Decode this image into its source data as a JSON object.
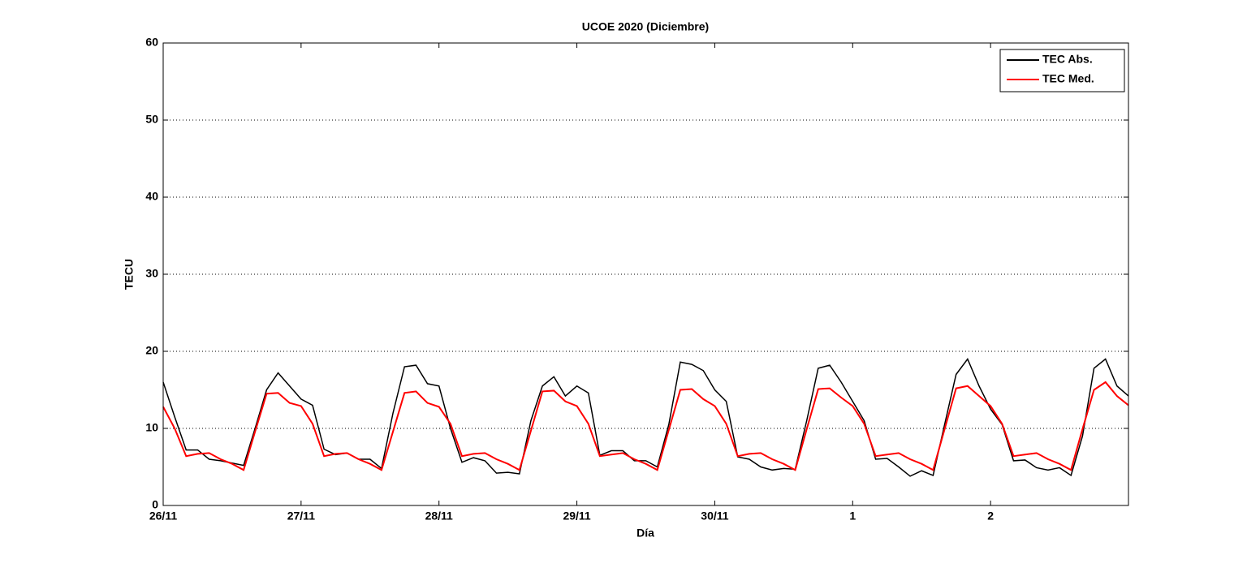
{
  "chart_data": {
    "type": "line",
    "title": "UCOE 2020 (Diciembre)",
    "xlabel": "Día",
    "ylabel": "TECU",
    "x": [
      0,
      2,
      4,
      6,
      8,
      10,
      12,
      14,
      16,
      18,
      20,
      22,
      24,
      26,
      28,
      30,
      32,
      34,
      36,
      38,
      40,
      42,
      44,
      46,
      48,
      50,
      52,
      54,
      56,
      58,
      60,
      62,
      64,
      66,
      68,
      70,
      72,
      74,
      76,
      78,
      80,
      82,
      84,
      86,
      88,
      90,
      92,
      94,
      96,
      98,
      100,
      102,
      104,
      106,
      108,
      110,
      112,
      114,
      116,
      118,
      120,
      122,
      124,
      126,
      128,
      130,
      132,
      134,
      136,
      138,
      140,
      142,
      144,
      146,
      148,
      150,
      152,
      154,
      156,
      158,
      160,
      162,
      164,
      166,
      168
    ],
    "series": [
      {
        "name": "TEC Abs.",
        "color": "#000000",
        "values": [
          16,
          11.5,
          7.2,
          7.2,
          6.0,
          5.8,
          5.5,
          5.2,
          10,
          15,
          17.2,
          15.5,
          13.8,
          13,
          7.3,
          6.6,
          6.8,
          6.0,
          6.0,
          4.8,
          12,
          18,
          18.2,
          15.8,
          15.5,
          10,
          5.6,
          6.2,
          5.8,
          4.2,
          4.3,
          4.1,
          11,
          15.5,
          16.7,
          14.2,
          15.5,
          14.6,
          6.5,
          7.1,
          7.1,
          5.8,
          5.8,
          5.0,
          10.5,
          18.6,
          18.3,
          17.5,
          15,
          13.5,
          6.3,
          6.0,
          5.0,
          4.6,
          4.8,
          4.7,
          11,
          17.8,
          18.2,
          16,
          13.5,
          11,
          6.0,
          6.1,
          5.0,
          3.8,
          4.5,
          3.9,
          10.5,
          17,
          19,
          15.5,
          12.5,
          10.5,
          5.8,
          5.9,
          4.9,
          4.6,
          4.9,
          3.9,
          9,
          17.8,
          19,
          15.5,
          14.2
        ]
      },
      {
        "name": "TEC Med.",
        "color": "#ff0000",
        "values": [
          12.8,
          10,
          6.4,
          6.7,
          6.8,
          6.0,
          5.4,
          4.6,
          9.6,
          14.5,
          14.6,
          13.3,
          12.9,
          10.6,
          6.4,
          6.7,
          6.8,
          6.0,
          5.4,
          4.6,
          9.6,
          14.6,
          14.8,
          13.3,
          12.8,
          10.6,
          6.4,
          6.7,
          6.8,
          6.0,
          5.4,
          4.6,
          9.7,
          14.8,
          14.9,
          13.5,
          12.9,
          10.6,
          6.4,
          6.6,
          6.8,
          6.0,
          5.4,
          4.6,
          9.8,
          15.0,
          15.1,
          13.8,
          12.9,
          10.6,
          6.4,
          6.7,
          6.8,
          6.0,
          5.4,
          4.6,
          9.9,
          15.1,
          15.2,
          14.0,
          12.9,
          10.6,
          6.4,
          6.6,
          6.8,
          6.0,
          5.4,
          4.6,
          9.9,
          15.2,
          15.5,
          14.2,
          12.9,
          10.6,
          6.4,
          6.6,
          6.8,
          6.0,
          5.4,
          4.6,
          9.9,
          15.0,
          16,
          14.2,
          13
        ]
      }
    ],
    "xlim": [
      0,
      168
    ],
    "xticks": [
      {
        "value": 0,
        "label": "26/11"
      },
      {
        "value": 24,
        "label": "27/11"
      },
      {
        "value": 48,
        "label": "28/11"
      },
      {
        "value": 72,
        "label": "29/11"
      },
      {
        "value": 96,
        "label": "30/11"
      },
      {
        "value": 120,
        "label": "1"
      },
      {
        "value": 144,
        "label": "2"
      }
    ],
    "ylim": [
      0,
      60
    ],
    "yticks": [
      0,
      10,
      20,
      30,
      40,
      50,
      60
    ],
    "grid": true,
    "legend": "upper right"
  }
}
